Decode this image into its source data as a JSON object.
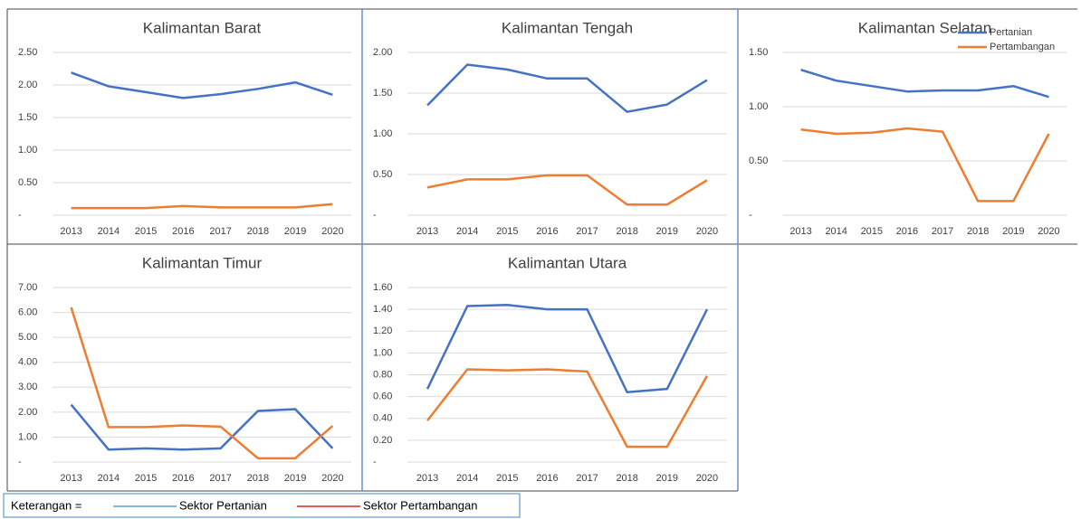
{
  "chart_data": [
    {
      "type": "line",
      "title": "Kalimantan Barat",
      "categories": [
        "2013",
        "2014",
        "2015",
        "2016",
        "2017",
        "2018",
        "2019",
        "2020"
      ],
      "series": [
        {
          "color": "#4472c4",
          "values": [
            2.19,
            1.98,
            1.89,
            1.8,
            1.86,
            1.94,
            2.04,
            1.85
          ]
        },
        {
          "color": "#ed7d31",
          "values": [
            0.11,
            0.11,
            0.11,
            0.14,
            0.12,
            0.12,
            0.12,
            0.17
          ]
        }
      ],
      "ylim": [
        0,
        2.5
      ],
      "yticks": [
        {
          "value": 0,
          "label": "-"
        },
        {
          "value": 0.5,
          "label": "0.50"
        },
        {
          "value": 1,
          "label": "1.00"
        },
        {
          "value": 1.5,
          "label": "1.50"
        },
        {
          "value": 2,
          "label": "2.00"
        },
        {
          "value": 2.5,
          "label": "2.50"
        }
      ],
      "grid": true
    },
    {
      "type": "line",
      "title": "Kalimantan Tengah",
      "categories": [
        "2013",
        "2014",
        "2015",
        "2016",
        "2017",
        "2018",
        "2019",
        "2020"
      ],
      "series": [
        {
          "color": "#4472c4",
          "values": [
            1.35,
            1.85,
            1.79,
            1.68,
            1.68,
            1.27,
            1.36,
            1.66
          ]
        },
        {
          "color": "#ed7d31",
          "values": [
            0.34,
            0.44,
            0.44,
            0.49,
            0.49,
            0.13,
            0.13,
            0.43
          ]
        }
      ],
      "ylim": [
        0,
        2
      ],
      "yticks": [
        {
          "value": 0,
          "label": "-"
        },
        {
          "value": 0.5,
          "label": "0.50"
        },
        {
          "value": 1,
          "label": "1.00"
        },
        {
          "value": 1.5,
          "label": "1.50"
        },
        {
          "value": 2,
          "label": "2.00"
        }
      ],
      "grid": true
    },
    {
      "type": "line",
      "title": "Kalimantan Selatan",
      "categories": [
        "2013",
        "2014",
        "2015",
        "2016",
        "2017",
        "2018",
        "2019",
        "2020"
      ],
      "series": [
        {
          "name": "Pertanian",
          "color": "#4472c4",
          "values": [
            1.34,
            1.24,
            1.19,
            1.14,
            1.15,
            1.15,
            1.19,
            1.09
          ]
        },
        {
          "name": "Pertambangan",
          "color": "#ed7d31",
          "values": [
            0.79,
            0.75,
            0.76,
            0.8,
            0.77,
            0.13,
            0.13,
            0.75
          ]
        }
      ],
      "ylim": [
        0,
        1.5
      ],
      "yticks": [
        {
          "value": 0,
          "label": "-"
        },
        {
          "value": 0.5,
          "label": "0.50"
        },
        {
          "value": 1,
          "label": "1.00"
        },
        {
          "value": 1.5,
          "label": "1.50"
        }
      ],
      "grid": true,
      "legend": "upper right"
    },
    {
      "type": "line",
      "title": "Kalimantan Timur",
      "categories": [
        "2013",
        "2014",
        "2015",
        "2016",
        "2017",
        "2018",
        "2019",
        "2020"
      ],
      "series": [
        {
          "color": "#4472c4",
          "values": [
            2.3,
            0.5,
            0.55,
            0.5,
            0.55,
            2.05,
            2.12,
            0.55
          ]
        },
        {
          "color": "#ed7d31",
          "values": [
            6.2,
            1.4,
            1.4,
            1.47,
            1.42,
            0.15,
            0.15,
            1.45
          ]
        }
      ],
      "ylim": [
        0,
        7
      ],
      "yticks": [
        {
          "value": 0,
          "label": "-"
        },
        {
          "value": 1,
          "label": "1.00"
        },
        {
          "value": 2,
          "label": "2.00"
        },
        {
          "value": 3,
          "label": "3.00"
        },
        {
          "value": 4,
          "label": "4.00"
        },
        {
          "value": 5,
          "label": "5.00"
        },
        {
          "value": 6,
          "label": "6.00"
        },
        {
          "value": 7,
          "label": "7.00"
        }
      ],
      "grid": true
    },
    {
      "type": "line",
      "title": "Kalimantan Utara",
      "categories": [
        "2013",
        "2014",
        "2015",
        "2016",
        "2017",
        "2018",
        "2019",
        "2020"
      ],
      "series": [
        {
          "color": "#4472c4",
          "values": [
            0.67,
            1.43,
            1.44,
            1.4,
            1.4,
            0.64,
            0.67,
            1.4
          ]
        },
        {
          "color": "#ed7d31",
          "values": [
            0.38,
            0.85,
            0.84,
            0.85,
            0.83,
            0.14,
            0.14,
            0.79
          ]
        }
      ],
      "ylim": [
        0,
        1.6
      ],
      "yticks": [
        {
          "value": 0,
          "label": "-"
        },
        {
          "value": 0.2,
          "label": "0.20"
        },
        {
          "value": 0.4,
          "label": "0.40"
        },
        {
          "value": 0.6,
          "label": "0.60"
        },
        {
          "value": 0.8,
          "label": "0.80"
        },
        {
          "value": 1,
          "label": "1.00"
        },
        {
          "value": 1.2,
          "label": "1.20"
        },
        {
          "value": 1.4,
          "label": "1.40"
        },
        {
          "value": 1.6,
          "label": "1.60"
        }
      ],
      "grid": true
    }
  ],
  "footer": {
    "label": "Keterangan =",
    "items": [
      "Sektor Pertanian",
      "Sektor Pertambangan"
    ]
  }
}
